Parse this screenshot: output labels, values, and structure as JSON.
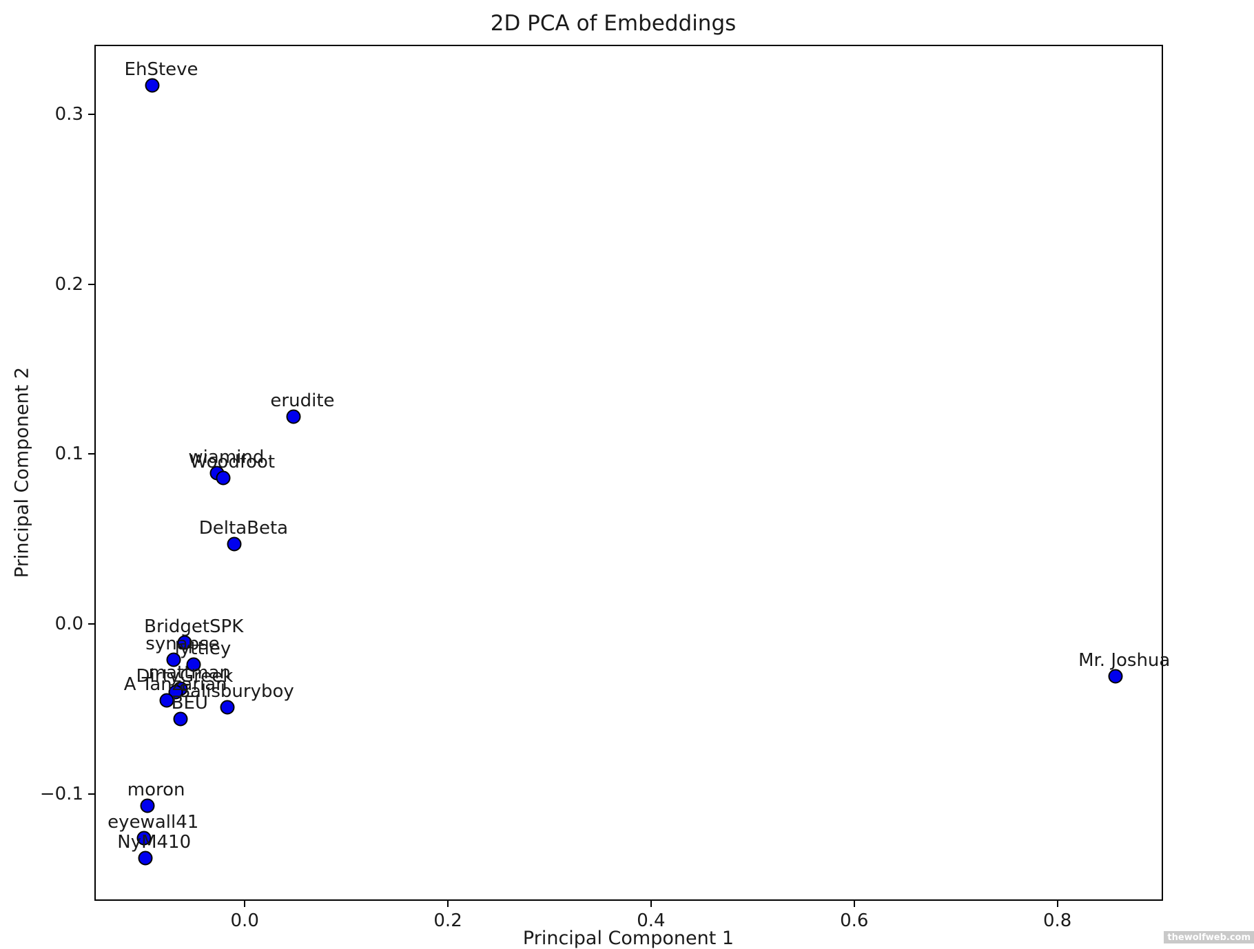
{
  "chart": {
    "title": "2D PCA of Embeddings",
    "xlabel": "Principal Component 1",
    "ylabel": "Principal Component 2"
  },
  "watermark": "thewolfweb.com",
  "chart_data": {
    "type": "scatter",
    "title": "2D PCA of Embeddings",
    "xlabel": "Principal Component 1",
    "ylabel": "Principal Component 2",
    "xlim": [
      -0.148,
      0.904
    ],
    "ylim": [
      -0.163,
      0.341
    ],
    "grid": false,
    "legend": null,
    "x_ticks": [
      0.0,
      0.2,
      0.4,
      0.6,
      0.8
    ],
    "x_tick_labels": [
      "0.0",
      "0.2",
      "0.4",
      "0.6",
      "0.8"
    ],
    "y_ticks": [
      0.3,
      0.2,
      0.1,
      0.0,
      -0.1
    ],
    "y_tick_labels": [
      "0.3",
      "0.2",
      "0.1",
      "0.0",
      "−0.1"
    ],
    "marker_color": "#0000ee",
    "marker_edge_color": "#000000",
    "points": [
      {
        "label": "EhSteve",
        "x": -0.091,
        "y": 0.317
      },
      {
        "label": "erudite",
        "x": 0.048,
        "y": 0.122
      },
      {
        "label": "wiamind",
        "x": -0.027,
        "y": 0.089
      },
      {
        "label": "Woodfoot",
        "x": -0.021,
        "y": 0.086
      },
      {
        "label": "DeltaBeta",
        "x": -0.01,
        "y": 0.047
      },
      {
        "label": "BridgetSPK",
        "x": -0.059,
        "y": -0.011
      },
      {
        "label": "synapse",
        "x": -0.07,
        "y": -0.021
      },
      {
        "label": "lyttley",
        "x": -0.05,
        "y": -0.024
      },
      {
        "label": "mattman",
        "x": -0.063,
        "y": -0.038
      },
      {
        "label": "DirtyGreek",
        "x": -0.068,
        "y": -0.04
      },
      {
        "label": "A Tanzarian",
        "x": -0.077,
        "y": -0.045
      },
      {
        "label": "Salisburyboy",
        "x": -0.017,
        "y": -0.049
      },
      {
        "label": "BEU",
        "x": -0.063,
        "y": -0.056
      },
      {
        "label": "moron",
        "x": -0.096,
        "y": -0.107
      },
      {
        "label": "eyewall41",
        "x": -0.099,
        "y": -0.126
      },
      {
        "label": "NyM410",
        "x": -0.098,
        "y": -0.138
      },
      {
        "label": "Mr. Joshua",
        "x": 0.857,
        "y": -0.031
      }
    ]
  }
}
